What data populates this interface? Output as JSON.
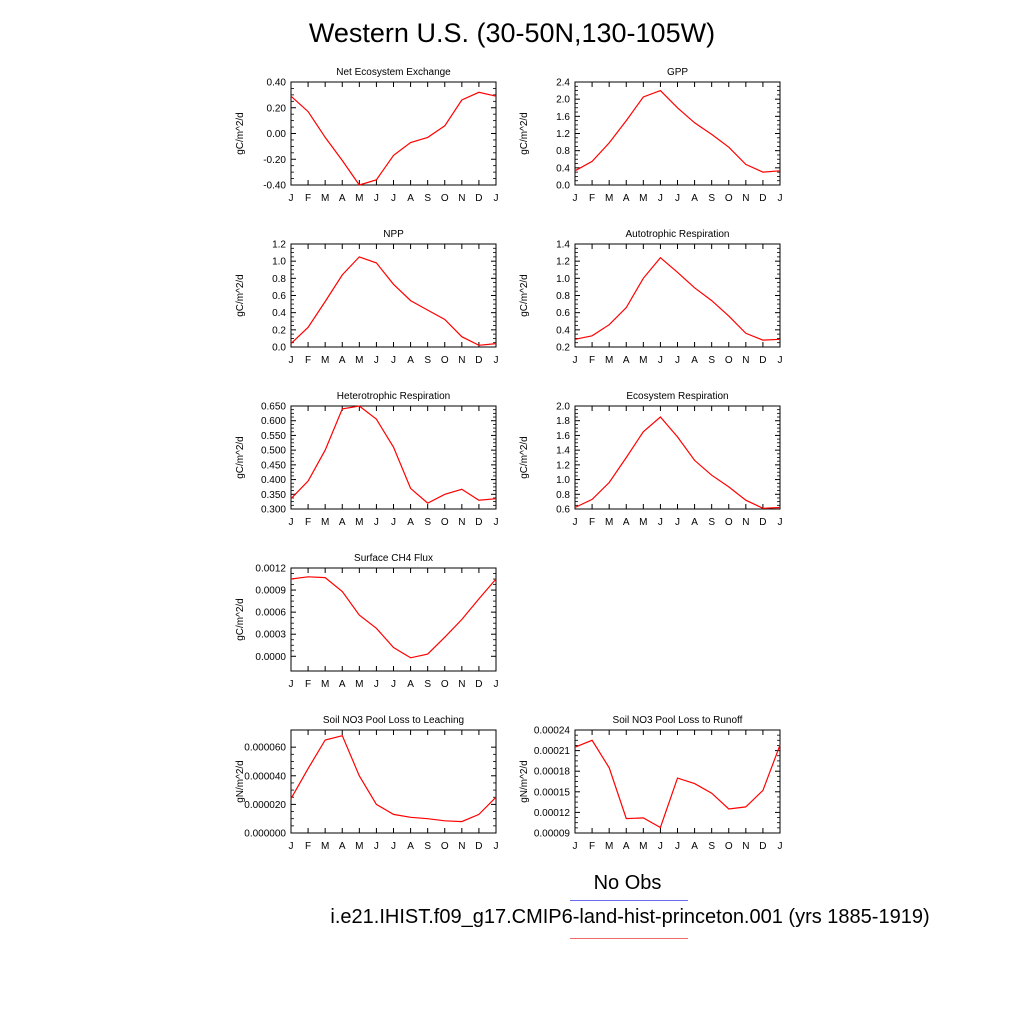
{
  "title": "Western U.S. (30-50N,130-105W)",
  "legend": {
    "obs_label": "No Obs",
    "case_label": "i.e21.IHIST.f09_g17.CMIP6-land-hist-princeton.001 (yrs 1885-1919)",
    "obs_color": "#6a6af0",
    "case_color": "#f06a6a"
  },
  "chart_data": [
    {
      "type": "line",
      "title": "Net Ecosystem Exchange",
      "ylabel": "gC/m^2/d",
      "categories": [
        "J",
        "F",
        "M",
        "A",
        "M",
        "J",
        "J",
        "A",
        "S",
        "O",
        "N",
        "D",
        "J"
      ],
      "ylim": [
        -0.4,
        0.4
      ],
      "yticks": [
        "-0.40",
        "-0.20",
        "0.00",
        "0.20",
        "0.40"
      ],
      "series": [
        {
          "values": [
            0.29,
            0.17,
            -0.03,
            -0.21,
            -0.4,
            -0.36,
            -0.17,
            -0.07,
            -0.03,
            0.06,
            0.26,
            0.32,
            0.29
          ],
          "color": "#ff0000"
        }
      ]
    },
    {
      "type": "line",
      "title": "GPP",
      "ylabel": "gC/m^2/d",
      "categories": [
        "J",
        "F",
        "M",
        "A",
        "M",
        "J",
        "J",
        "A",
        "S",
        "O",
        "N",
        "D",
        "J"
      ],
      "ylim": [
        0.0,
        2.4
      ],
      "yticks": [
        "0.0",
        "0.4",
        "0.8",
        "1.2",
        "1.6",
        "2.0",
        "2.4"
      ],
      "series": [
        {
          "values": [
            0.33,
            0.55,
            0.98,
            1.5,
            2.05,
            2.2,
            1.8,
            1.45,
            1.18,
            0.88,
            0.48,
            0.3,
            0.33
          ],
          "color": "#ff0000"
        }
      ]
    },
    {
      "type": "line",
      "title": "NPP",
      "ylabel": "gC/m^2/d",
      "categories": [
        "J",
        "F",
        "M",
        "A",
        "M",
        "J",
        "J",
        "A",
        "S",
        "O",
        "N",
        "D",
        "J"
      ],
      "ylim": [
        0.0,
        1.2
      ],
      "yticks": [
        "0.0",
        "0.2",
        "0.4",
        "0.6",
        "0.8",
        "1.0",
        "1.2"
      ],
      "series": [
        {
          "values": [
            0.04,
            0.23,
            0.53,
            0.84,
            1.05,
            0.98,
            0.73,
            0.54,
            0.43,
            0.32,
            0.12,
            0.02,
            0.04
          ],
          "color": "#ff0000"
        }
      ]
    },
    {
      "type": "line",
      "title": "Autotrophic Respiration",
      "ylabel": "gC/m^2/d",
      "categories": [
        "J",
        "F",
        "M",
        "A",
        "M",
        "J",
        "J",
        "A",
        "S",
        "O",
        "N",
        "D",
        "J"
      ],
      "ylim": [
        0.2,
        1.4
      ],
      "yticks": [
        "0.2",
        "0.4",
        "0.6",
        "0.8",
        "1.0",
        "1.2",
        "1.4"
      ],
      "series": [
        {
          "values": [
            0.29,
            0.33,
            0.46,
            0.66,
            1.0,
            1.24,
            1.07,
            0.89,
            0.74,
            0.56,
            0.36,
            0.28,
            0.29
          ],
          "color": "#ff0000"
        }
      ]
    },
    {
      "type": "line",
      "title": "Heterotrophic Respiration",
      "ylabel": "gC/m^2/d",
      "categories": [
        "J",
        "F",
        "M",
        "A",
        "M",
        "J",
        "J",
        "A",
        "S",
        "O",
        "N",
        "D",
        "J"
      ],
      "ylim": [
        0.3,
        0.65
      ],
      "yticks": [
        "0.300",
        "0.350",
        "0.400",
        "0.450",
        "0.500",
        "0.550",
        "0.600",
        "0.650"
      ],
      "series": [
        {
          "values": [
            0.335,
            0.395,
            0.5,
            0.64,
            0.65,
            0.605,
            0.51,
            0.37,
            0.32,
            0.35,
            0.367,
            0.33,
            0.335
          ],
          "color": "#ff0000"
        }
      ]
    },
    {
      "type": "line",
      "title": "Ecosystem Respiration",
      "ylabel": "gC/m^2/d",
      "categories": [
        "J",
        "F",
        "M",
        "A",
        "M",
        "J",
        "J",
        "A",
        "S",
        "O",
        "N",
        "D",
        "J"
      ],
      "ylim": [
        0.6,
        2.0
      ],
      "yticks": [
        "0.6",
        "0.8",
        "1.0",
        "1.2",
        "1.4",
        "1.6",
        "1.8",
        "2.0"
      ],
      "series": [
        {
          "values": [
            0.62,
            0.73,
            0.96,
            1.3,
            1.65,
            1.85,
            1.58,
            1.26,
            1.06,
            0.9,
            0.72,
            0.61,
            0.62
          ],
          "color": "#ff0000"
        }
      ]
    },
    {
      "type": "line",
      "title": "Surface CH4 Flux",
      "ylabel": "gC/m^2/d",
      "categories": [
        "J",
        "F",
        "M",
        "A",
        "M",
        "J",
        "J",
        "A",
        "S",
        "O",
        "N",
        "D",
        "J"
      ],
      "ylim": [
        -0.0002,
        0.0012
      ],
      "yticks": [
        "0.0000",
        "0.0003",
        "0.0006",
        "0.0009",
        "0.0012"
      ],
      "ytick_values": [
        0.0,
        0.0003,
        0.0006,
        0.0009,
        0.0012
      ],
      "series": [
        {
          "values": [
            0.00105,
            0.00108,
            0.00107,
            0.00088,
            0.00056,
            0.00038,
            0.00012,
            -2e-05,
            3e-05,
            0.00026,
            0.0005,
            0.00078,
            0.00105
          ],
          "color": "#ff0000"
        }
      ]
    },
    {
      "type": "line",
      "title": "Soil NO3 Pool Loss to Leaching",
      "ylabel": "gN/m^2/d",
      "categories": [
        "J",
        "F",
        "M",
        "A",
        "M",
        "J",
        "J",
        "A",
        "S",
        "O",
        "N",
        "D",
        "J"
      ],
      "ylim": [
        0.0,
        7.2e-05
      ],
      "yticks": [
        "0.000000",
        "0.000020",
        "0.000040",
        "0.000060"
      ],
      "ytick_values": [
        0.0,
        2e-05,
        4e-05,
        6e-05
      ],
      "series": [
        {
          "values": [
            2.4e-05,
            4.5e-05,
            6.5e-05,
            6.8e-05,
            4e-05,
            2e-05,
            1.3e-05,
            1.1e-05,
            1e-05,
            8.5e-06,
            8e-06,
            1.3e-05,
            2.5e-05
          ],
          "color": "#ff0000"
        }
      ]
    },
    {
      "type": "line",
      "title": "Soil NO3 Pool Loss to Runoff",
      "ylabel": "gN/m^2/d",
      "categories": [
        "J",
        "F",
        "M",
        "A",
        "M",
        "J",
        "J",
        "A",
        "S",
        "O",
        "N",
        "D",
        "J"
      ],
      "ylim": [
        9e-05,
        0.00024
      ],
      "yticks": [
        "0.00009",
        "0.00012",
        "0.00015",
        "0.00018",
        "0.00021",
        "0.00024"
      ],
      "ytick_values": [
        9e-05,
        0.00012,
        0.00015,
        0.00018,
        0.00021,
        0.00024
      ],
      "series": [
        {
          "values": [
            0.000215,
            0.000225,
            0.000185,
            0.000111,
            0.000112,
            9.8e-05,
            0.00017,
            0.000162,
            0.000148,
            0.000125,
            0.000128,
            0.000152,
            0.000218
          ],
          "color": "#ff0000"
        }
      ]
    }
  ]
}
